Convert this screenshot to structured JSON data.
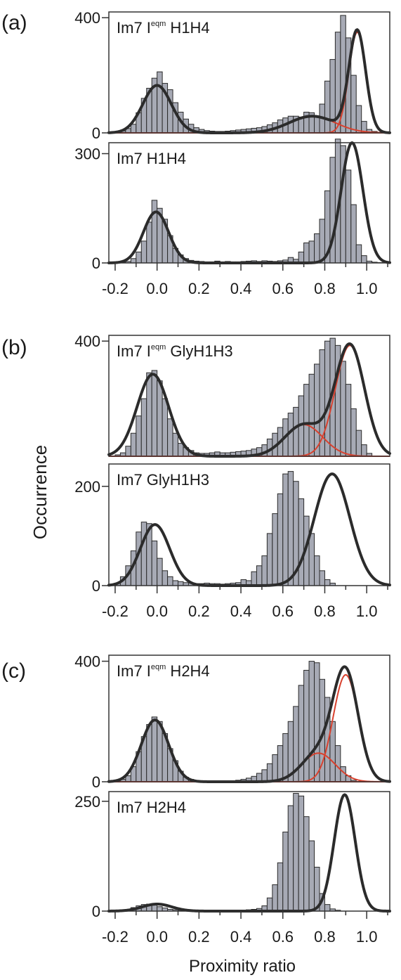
{
  "figure": {
    "ylabel": "Occurrence",
    "xlabel": "Proximity ratio",
    "x_ticks": [
      "-0.2",
      "0.0",
      "0.2",
      "0.4",
      "0.6",
      "0.8",
      "1.0"
    ],
    "colors": {
      "bar_fill": "#a7aab5",
      "bar_edge": "#2b2b2b",
      "fit": "#2b2b2b",
      "component": "#d9412e",
      "frame": "#333333"
    },
    "panels": [
      {
        "label": "(a)"
      },
      {
        "label": "(b)"
      },
      {
        "label": "(c)"
      }
    ]
  },
  "chart_data": [
    {
      "type": "bar",
      "panel": "(a)",
      "title_parts": [
        "Im7 I",
        "eqm",
        " H1H4"
      ],
      "x_range": [
        -0.23,
        1.11
      ],
      "ylim": [
        0,
        420
      ],
      "y_ticks": [
        0,
        400
      ],
      "y_tick_labels": [
        "0",
        "400"
      ],
      "bin_width": 0.025,
      "bin_centers_start": -0.1875,
      "values": [
        3,
        7,
        15,
        30,
        70,
        120,
        155,
        190,
        212,
        172,
        150,
        105,
        72,
        48,
        30,
        18,
        12,
        8,
        6,
        5,
        5,
        6,
        8,
        10,
        12,
        14,
        16,
        18,
        22,
        28,
        35,
        45,
        52,
        58,
        58,
        55,
        72,
        70,
        58,
        100,
        180,
        255,
        350,
        408,
        330,
        200,
        95,
        40,
        12,
        5,
        2
      ],
      "fit": [
        {
          "mu": 0.0,
          "sigma": 0.068,
          "amp": 165
        },
        {
          "mu": 0.74,
          "sigma": 0.11,
          "amp": 58
        },
        {
          "mu": 0.955,
          "sigma": 0.04,
          "amp": 350
        }
      ],
      "components": [
        {
          "mu": 0.0,
          "sigma": 0.068,
          "amp": 165
        },
        {
          "mu": 0.74,
          "sigma": 0.11,
          "amp": 58
        },
        {
          "mu": 0.955,
          "sigma": 0.04,
          "amp": 350
        }
      ]
    },
    {
      "type": "bar",
      "panel": "(a)",
      "title_parts": [
        "Im7 H1H4"
      ],
      "x_range": [
        -0.23,
        1.11
      ],
      "ylim": [
        0,
        330
      ],
      "y_ticks": [
        0,
        300
      ],
      "y_tick_labels": [
        "0",
        "300"
      ],
      "bin_width": 0.025,
      "bin_centers_start": -0.1875,
      "values": [
        1,
        2,
        4,
        12,
        30,
        60,
        112,
        172,
        150,
        120,
        75,
        40,
        22,
        12,
        7,
        5,
        4,
        3,
        3,
        5,
        3,
        4,
        3,
        3,
        4,
        5,
        6,
        4,
        6,
        5,
        4,
        6,
        8,
        15,
        10,
        30,
        55,
        60,
        80,
        120,
        198,
        290,
        340,
        322,
        255,
        160,
        50,
        20,
        5,
        2,
        1
      ],
      "fit": [
        {
          "mu": -0.005,
          "sigma": 0.06,
          "amp": 140
        },
        {
          "mu": 0.93,
          "sigma": 0.052,
          "amp": 330
        }
      ],
      "components": []
    },
    {
      "type": "bar",
      "panel": "(b)",
      "title_parts": [
        "Im7 I",
        "eqm",
        " GlyH1H3"
      ],
      "x_range": [
        -0.23,
        1.11
      ],
      "ylim": [
        0,
        420
      ],
      "y_ticks": [
        400
      ],
      "y_tick_labels": [
        "400"
      ],
      "bin_width": 0.025,
      "bin_centers_start": -0.1875,
      "values": [
        5,
        12,
        35,
        80,
        140,
        200,
        290,
        298,
        262,
        200,
        130,
        80,
        45,
        30,
        20,
        12,
        10,
        10,
        12,
        15,
        12,
        12,
        14,
        16,
        18,
        20,
        25,
        30,
        40,
        60,
        80,
        100,
        130,
        150,
        170,
        210,
        250,
        285,
        320,
        370,
        400,
        410,
        385,
        330,
        250,
        165,
        90,
        40,
        10
      ],
      "fit": [
        {
          "mu": -0.02,
          "sigma": 0.075,
          "amp": 285
        },
        {
          "mu": 0.7,
          "sigma": 0.09,
          "amp": 110
        },
        {
          "mu": 0.92,
          "sigma": 0.07,
          "amp": 385
        }
      ],
      "components": [
        {
          "mu": -0.02,
          "sigma": 0.075,
          "amp": 285
        },
        {
          "mu": 0.7,
          "sigma": 0.09,
          "amp": 110
        },
        {
          "mu": 0.92,
          "sigma": 0.07,
          "amp": 385
        }
      ]
    },
    {
      "type": "bar",
      "panel": "(b)",
      "title_parts": [
        "Im7 GlyH1H3"
      ],
      "x_range": [
        -0.23,
        1.11
      ],
      "ylim": [
        0,
        245
      ],
      "y_ticks": [
        0,
        200
      ],
      "y_tick_labels": [
        "0",
        "200"
      ],
      "bin_width": 0.025,
      "bin_centers_start": -0.1875,
      "values": [
        5,
        18,
        40,
        70,
        108,
        128,
        125,
        90,
        55,
        30,
        18,
        10,
        8,
        6,
        5,
        4,
        4,
        5,
        4,
        4,
        3,
        4,
        5,
        6,
        12,
        10,
        28,
        40,
        60,
        105,
        145,
        185,
        225,
        230,
        210,
        175,
        140,
        105,
        60,
        30,
        12,
        5
      ],
      "fit": [
        {
          "mu": -0.01,
          "sigma": 0.07,
          "amp": 123
        },
        {
          "mu": 0.835,
          "sigma": 0.085,
          "amp": 225
        }
      ],
      "components": []
    },
    {
      "type": "bar",
      "panel": "(c)",
      "title_parts": [
        "Im7 I",
        "eqm",
        " H2H4"
      ],
      "x_range": [
        -0.23,
        1.11
      ],
      "ylim": [
        0,
        420
      ],
      "y_ticks": [
        0,
        400
      ],
      "y_tick_labels": [
        "0",
        "400"
      ],
      "bin_width": 0.025,
      "bin_centers_start": -0.1875,
      "values": [
        3,
        8,
        20,
        50,
        100,
        150,
        190,
        215,
        200,
        160,
        110,
        70,
        35,
        15,
        8,
        4,
        2,
        2,
        2,
        2,
        2,
        3,
        3,
        5,
        8,
        12,
        18,
        28,
        40,
        60,
        90,
        120,
        160,
        200,
        250,
        320,
        370,
        400,
        395,
        340,
        280,
        200,
        120,
        50,
        20,
        5
      ],
      "fit": [
        {
          "mu": -0.01,
          "sigma": 0.065,
          "amp": 205
        },
        {
          "mu": 0.77,
          "sigma": 0.08,
          "amp": 95
        },
        {
          "mu": 0.9,
          "sigma": 0.06,
          "amp": 355
        }
      ],
      "components": [
        {
          "mu": -0.01,
          "sigma": 0.065,
          "amp": 205
        },
        {
          "mu": 0.77,
          "sigma": 0.08,
          "amp": 95
        },
        {
          "mu": 0.9,
          "sigma": 0.06,
          "amp": 355
        }
      ]
    },
    {
      "type": "bar",
      "panel": "(c)",
      "title_parts": [
        "Im7  H2H4"
      ],
      "x_range": [
        -0.23,
        1.11
      ],
      "ylim": [
        0,
        272
      ],
      "y_ticks": [
        0,
        250
      ],
      "y_tick_labels": [
        "0",
        "250"
      ],
      "bin_width": 0.025,
      "bin_centers_start": -0.1875,
      "values": [
        1,
        2,
        4,
        8,
        12,
        15,
        16,
        14,
        10,
        7,
        4,
        3,
        2,
        2,
        1,
        1,
        1,
        1,
        1,
        1,
        1,
        1,
        1,
        2,
        2,
        3,
        4,
        6,
        12,
        30,
        60,
        110,
        180,
        240,
        268,
        262,
        215,
        160,
        100,
        40,
        15,
        5,
        2
      ],
      "fit": [
        {
          "mu": 0.0,
          "sigma": 0.07,
          "amp": 16
        },
        {
          "mu": 0.895,
          "sigma": 0.05,
          "amp": 265
        }
      ],
      "components": []
    }
  ]
}
